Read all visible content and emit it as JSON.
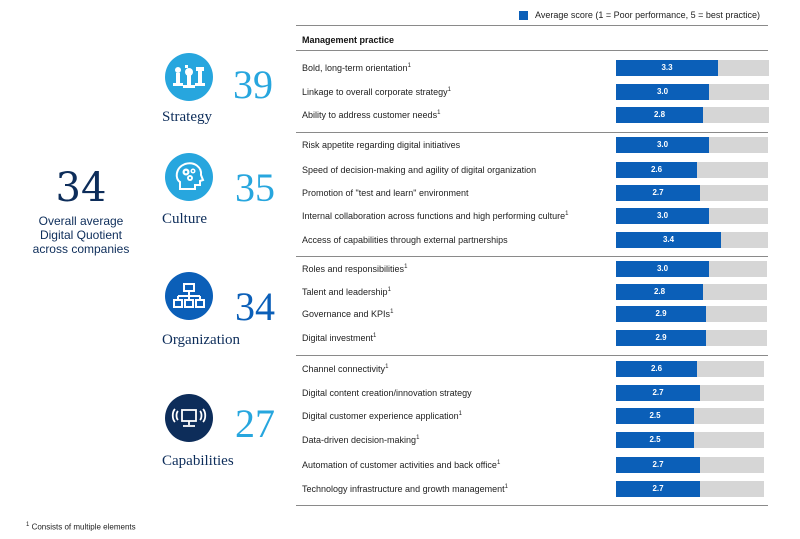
{
  "legend": {
    "label": "Average score (1 = Poor performance, 5 = best practice)",
    "color": "#0b5fb8"
  },
  "header": "Management practice",
  "overall": {
    "score": "34",
    "label_lines": [
      "Overall average",
      "Digital Quotient",
      "across companies"
    ]
  },
  "footnote": "Consists of multiple elements",
  "footnote_marker": "1",
  "categories": [
    {
      "name": "Strategy",
      "score": "39",
      "icon": "chess-pieces-icon",
      "icon_color": "#27a6de",
      "score_color": "#27a6de"
    },
    {
      "name": "Culture",
      "score": "35",
      "icon": "head-gears-icon",
      "icon_color": "#27a6de",
      "score_color": "#27a6de"
    },
    {
      "name": "Organization",
      "score": "34",
      "icon": "org-chart-icon",
      "icon_color": "#0b5fb8",
      "score_color": "#0b5fb8"
    },
    {
      "name": "Capabilities",
      "score": "27",
      "icon": "wireless-computer-icon",
      "icon_color": "#0d2d5a",
      "score_color": "#27a6de"
    }
  ],
  "chart_data": {
    "type": "bar",
    "orientation": "horizontal",
    "title": "Management practice",
    "legend": "Average score (1 = Poor performance, 5 = best practice)",
    "xlim": [
      0,
      5
    ],
    "categories": [
      "Bold, long-term orientation",
      "Linkage to overall corporate strategy",
      "Ability to address customer needs",
      "Risk appetite regarding digital initiatives",
      "Speed of decision-making and agility of digital organization",
      "Promotion of \"test and learn\" environment",
      "Internal collaboration across functions and high performing culture",
      "Access of capabilities through external partnerships",
      "Roles and responsibilities",
      "Talent and leadership",
      "Governance and KPIs",
      "Digital investment",
      "Channel connectivity",
      "Digital content creation/innovation strategy",
      "Digital customer experience application",
      "Data-driven decision-making",
      "Automation of customer activities and back office",
      "Technology infrastructure and growth management"
    ],
    "values": [
      3.3,
      3.0,
      2.8,
      3.0,
      2.6,
      2.7,
      3.0,
      3.4,
      3.0,
      2.8,
      2.9,
      2.9,
      2.6,
      2.7,
      2.5,
      2.5,
      2.7,
      2.7
    ],
    "value_labels": [
      "3.3",
      "3.0",
      "2.8",
      "3.0",
      "2.6",
      "2.7",
      "3.0",
      "3.4",
      "3.0",
      "2.8",
      "2.9",
      "2.9",
      "2.6",
      "2.7",
      "2.5",
      "2.5",
      "2.7",
      "2.7"
    ],
    "footnote_marks": [
      true,
      true,
      true,
      false,
      false,
      false,
      true,
      false,
      true,
      true,
      true,
      true,
      true,
      false,
      true,
      true,
      true,
      true
    ],
    "groups": [
      "Strategy",
      "Strategy",
      "Strategy",
      "Culture",
      "Culture",
      "Culture",
      "Culture",
      "Culture",
      "Organization",
      "Organization",
      "Organization",
      "Organization",
      "Capabilities",
      "Capabilities",
      "Capabilities",
      "Capabilities",
      "Capabilities",
      "Capabilities"
    ]
  }
}
